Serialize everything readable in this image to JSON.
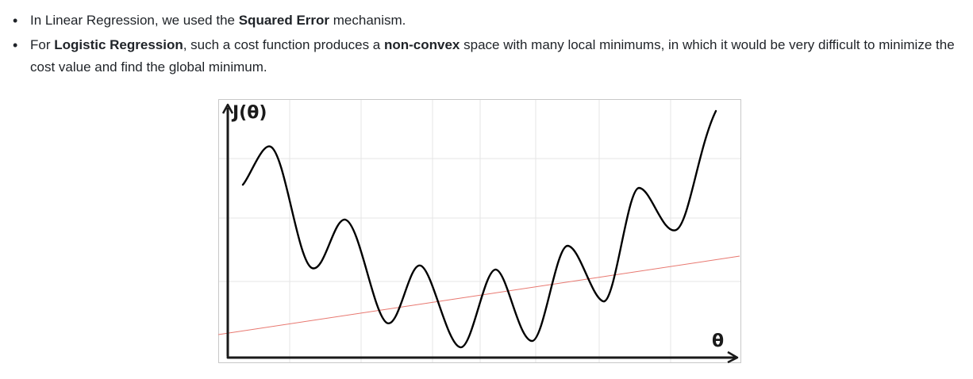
{
  "bullets": [
    {
      "segments": [
        {
          "text": "In Linear Regression, we used the ",
          "bold": false
        },
        {
          "text": "Squared Error",
          "bold": true
        },
        {
          "text": " mechanism.",
          "bold": false
        }
      ]
    },
    {
      "segments": [
        {
          "text": "For ",
          "bold": false
        },
        {
          "text": "Logistic Regression",
          "bold": true
        },
        {
          "text": ", such a cost function produces a ",
          "bold": false
        },
        {
          "text": "non-convex",
          "bold": true
        },
        {
          "text": " space with many local minimums, in which it would be very difficult to minimize the cost value and find the global minimum.",
          "bold": false
        }
      ]
    }
  ],
  "figure": {
    "y_axis_label": "J(θ)",
    "x_axis_label": "θ",
    "colors": {
      "curve": "#000000",
      "line": "#e8776f",
      "grid": "#e6e6e6",
      "border": "#c8c8c8"
    }
  }
}
